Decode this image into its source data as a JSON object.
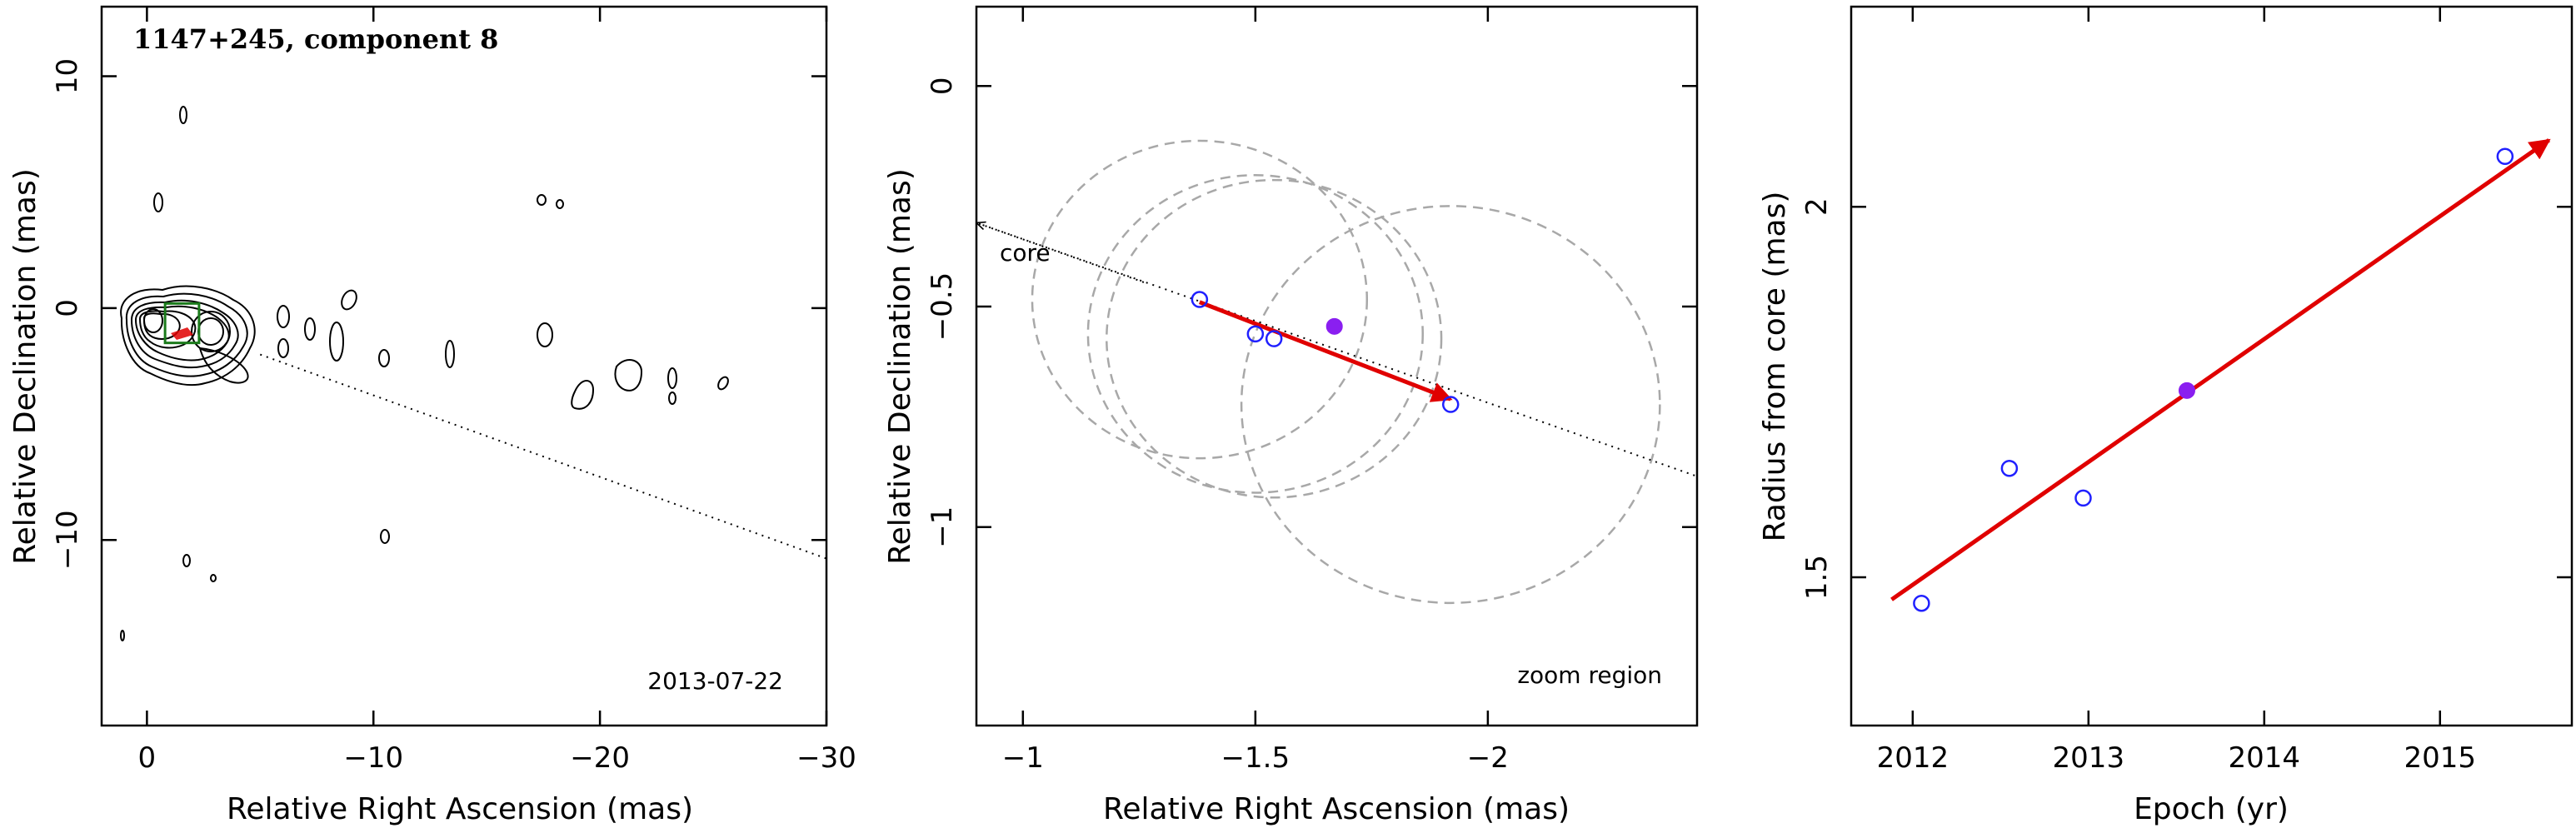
{
  "chart_data": [
    {
      "type": "scatter",
      "title": "1147+245, component 8",
      "annotation": "2013-07-22",
      "xlabel": "Relative Right Ascension (mas)",
      "ylabel": "Relative Declination (mas)",
      "xlim": [
        2,
        -30
      ],
      "ylim": [
        -18,
        13
      ],
      "xticks": [
        0,
        -10,
        -20,
        -30
      ],
      "yticks": [
        10,
        0,
        -10
      ],
      "xtick_labels": [
        "0",
        "−10",
        "−20",
        "−30"
      ],
      "ytick_labels": [
        "10",
        "0",
        "−10"
      ],
      "dotted_line": {
        "from": [
          -5,
          -2
        ],
        "to": [
          -30,
          -10.8
        ]
      },
      "zoom_box": {
        "x": [
          -0.8,
          -2.3
        ],
        "y": [
          0.2,
          -1.5
        ]
      },
      "colors": {
        "contour": "#000000",
        "zoom_box": "#1a7a1a",
        "marker": "#e00000"
      }
    },
    {
      "type": "scatter",
      "annotation": "zoom region",
      "arrow_label": "core",
      "xlabel": "Relative Right Ascension (mas)",
      "ylabel": "Relative Declination (mas)",
      "xlim": [
        -0.9,
        -2.45
      ],
      "ylim": [
        -1.45,
        0.18
      ],
      "xticks": [
        -1,
        -1.5,
        -2
      ],
      "yticks": [
        0,
        -0.5,
        -1
      ],
      "xtick_labels": [
        "−1",
        "−1.5",
        "−2"
      ],
      "ytick_labels": [
        "0",
        "−0.5",
        "−1"
      ],
      "points": [
        {
          "x": -1.38,
          "y": -0.484
        },
        {
          "x": -1.5,
          "y": -0.562
        },
        {
          "x": -1.54,
          "y": -0.573
        },
        {
          "x": -1.92,
          "y": -0.722
        }
      ],
      "mean_point": {
        "x": -1.67,
        "y": -0.545
      },
      "circles": [
        {
          "x": -1.38,
          "y": -0.484,
          "r": 0.36
        },
        {
          "x": -1.5,
          "y": -0.562,
          "r": 0.36
        },
        {
          "x": -1.54,
          "y": -0.573,
          "r": 0.36
        },
        {
          "x": -1.92,
          "y": -0.722,
          "r": 0.45
        }
      ],
      "motion_arrow": {
        "from": [
          -1.38,
          -0.49
        ],
        "to": [
          -1.92,
          -0.71
        ]
      },
      "core_arrow_to": [
        -0.9,
        -0.31
      ],
      "dotted_line": {
        "from": [
          -0.9,
          -0.31
        ],
        "to": [
          -2.45,
          -0.885
        ]
      },
      "colors": {
        "points": "#2020ff",
        "mean": "#8a1ff0",
        "arrow": "#e00000",
        "circles": "#a8a8a8"
      }
    },
    {
      "type": "scatter",
      "xlabel": "Epoch (yr)",
      "ylabel": "Radius from core (mas)",
      "xlim": [
        2011.65,
        2015.75
      ],
      "ylim": [
        1.3,
        2.27
      ],
      "xticks": [
        2012,
        2013,
        2014,
        2015
      ],
      "yticks": [
        1.5,
        2
      ],
      "xtick_labels": [
        "2012",
        "2013",
        "2014",
        "2015"
      ],
      "ytick_labels": [
        "1.5",
        "2"
      ],
      "points": [
        {
          "x": 2012.05,
          "y": 1.465
        },
        {
          "x": 2012.55,
          "y": 1.647
        },
        {
          "x": 2012.97,
          "y": 1.607
        },
        {
          "x": 2015.37,
          "y": 2.068
        }
      ],
      "mean_point": {
        "x": 2013.56,
        "y": 1.752
      },
      "fit_line": {
        "from": [
          2011.88,
          1.47
        ],
        "to": [
          2015.62,
          2.09
        ]
      },
      "colors": {
        "points": "#2020ff",
        "mean": "#8a1ff0",
        "fit": "#e00000"
      }
    }
  ]
}
